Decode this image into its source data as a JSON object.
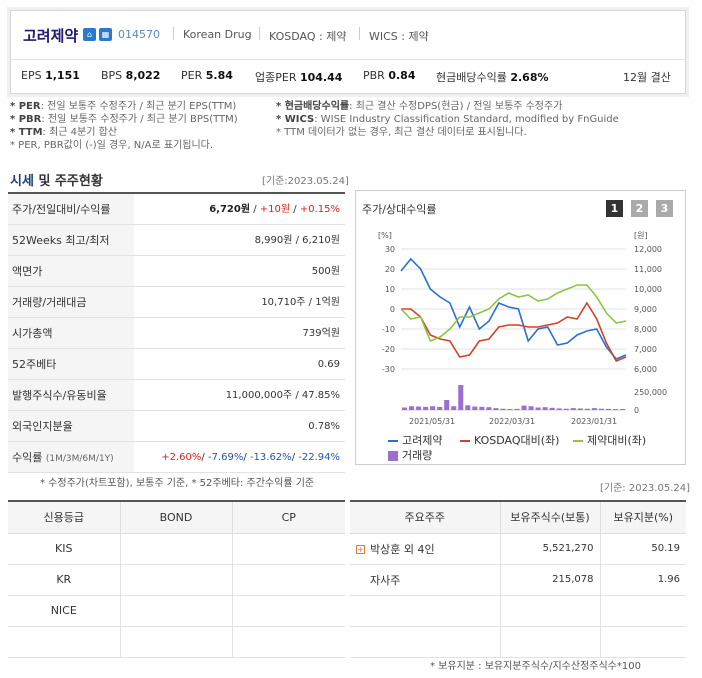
{
  "header": {
    "name": "고려제약",
    "code": "014570",
    "eng_name": "Korean Drug",
    "market": "KOSDAQ : 제약",
    "wics": "WICS : 제약",
    "metrics": [
      {
        "label": "EPS",
        "value": "1,151"
      },
      {
        "label": "BPS",
        "value": "8,022"
      },
      {
        "label": "PER",
        "value": "5.84"
      },
      {
        "label": "업종PER",
        "value": "104.44"
      },
      {
        "label": "PBR",
        "value": "0.84"
      },
      {
        "label": "현금배당수익률",
        "value": "2.68%"
      }
    ],
    "settlement": "12월 결산"
  },
  "notes": {
    "per": [
      "* PER",
      ": 전일 보통주 수정주가 / 최근 분기 EPS(TTM)"
    ],
    "pbr": [
      "* PBR",
      ": 전일 보통주 수정주가 / 최근 분기 BPS(TTM)"
    ],
    "ttm": [
      "* TTM",
      ": 최근 4분기 합산"
    ],
    "neg": "* PER, PBR값이 (-)일 경우, N/A로 표기됩니다.",
    "div": [
      "* 현금배당수익률",
      ": 최근 결산 수정DPS(현금) / 전일 보통주 수정주가"
    ],
    "wics": [
      "* WICS",
      ": WISE Industry Classification Standard, modified by FnGuide"
    ],
    "ttm2": "* TTM 데이터가 없는 경우, 최근 결산 데이터로 표시됩니다."
  },
  "price_section": {
    "title_a": "시세",
    "title_b": " 및 주주현황",
    "date": "[기준:2023.05.24]",
    "rows": [
      {
        "k": "주가/전일대비/수익률",
        "v1": "6,720원",
        "v2": " / ",
        "v3": "+10원",
        "v4": " / ",
        "v5": "+0.15%"
      },
      {
        "k": "52Weeks 최고/최저",
        "v": "8,990원 / 6,210원"
      },
      {
        "k": "액면가",
        "v": "500원"
      },
      {
        "k": "거래량/거래대금",
        "v": "10,710주 / 1억원"
      },
      {
        "k": "시가총액",
        "v": "739억원"
      },
      {
        "k": "52주베타",
        "v": "0.69"
      },
      {
        "k": "발행주식수/유동비율",
        "v": "11,000,000주 / 47.85%"
      },
      {
        "k": "외국인지분율",
        "v": "0.78%"
      }
    ],
    "returns_label": "수익률",
    "returns_sub": "(1M/3M/6M/1Y)",
    "returns": [
      "+2.60%",
      "-7.69%",
      "-13.62%",
      "-22.94%"
    ],
    "footnote": "* 수정주가(차트포함), 보통주 기준, * 52주베타: 주간수익률 기준"
  },
  "chart_panel": {
    "title": "주가/상대수익률",
    "buttons": [
      "1",
      "2",
      "3"
    ],
    "left_unit": "[%]",
    "right_unit": "[원]"
  },
  "chart_data": {
    "type": "line",
    "x_ticks": [
      "2021/05/31",
      "2022/03/31",
      "2023/01/31"
    ],
    "y_left_ticks": [
      "30",
      "20",
      "10",
      "0",
      "-10",
      "-20",
      "-30"
    ],
    "y_right_ticks": [
      "12,000",
      "11,000",
      "10,000",
      "9,000",
      "8,000",
      "7,000",
      "6,000"
    ],
    "volume_ticks": [
      "250,000",
      "0"
    ],
    "ylim_left": [
      -30,
      30
    ],
    "ylim_right": [
      6000,
      12000
    ],
    "series": [
      {
        "name": "고려제약",
        "color": "#2a6fd3",
        "values": [
          19,
          25,
          20,
          10,
          6,
          3,
          -9,
          1,
          -10,
          -6,
          3,
          1,
          0,
          -16,
          -10,
          -9,
          -18,
          -17,
          -13,
          -11,
          -10,
          -19,
          -25,
          -23
        ]
      },
      {
        "name": "KOSDAQ대비(좌)",
        "color": "#d2422b",
        "values": [
          0,
          0,
          -4,
          -13,
          -15,
          -16,
          -24,
          -23,
          -16,
          -15,
          -9,
          -8,
          -8,
          -9,
          -9,
          -8,
          -7,
          -4,
          -5,
          3,
          -5,
          -17,
          -26,
          -24
        ]
      },
      {
        "name": "제약대비(좌)",
        "color": "#8cc63f",
        "values": [
          0,
          -5,
          -4,
          -16,
          -14,
          -10,
          -4,
          -4,
          -2,
          0,
          5,
          8,
          6,
          7,
          4,
          5,
          8,
          10,
          12,
          12,
          6,
          -2,
          -7,
          -6
        ]
      },
      {
        "name": "거래량",
        "color": "#9b6fd0",
        "volumes": [
          40,
          60,
          55,
          50,
          60,
          50,
          160,
          60,
          400,
          75,
          55,
          50,
          45,
          30,
          20,
          15,
          18,
          70,
          60,
          40,
          45,
          35,
          25,
          20,
          30,
          25,
          20,
          30,
          20,
          18,
          15,
          15
        ]
      }
    ]
  },
  "date2": "[기준: 2023.05.24]",
  "credit": {
    "headers": [
      "신용등급",
      "BOND",
      "CP"
    ],
    "rows": [
      "KIS",
      "KR",
      "NICE",
      ""
    ]
  },
  "holders": {
    "headers": [
      "주요주주",
      "보유주식수(보통)",
      "보유지분(%)"
    ],
    "rows": [
      {
        "name": "박상훈 외 4인",
        "shares": "5,521,270",
        "pct": "50.19"
      },
      {
        "name": "자사주",
        "shares": "215,078",
        "pct": "1.96"
      },
      {
        "name": "",
        "shares": "",
        "pct": ""
      },
      {
        "name": "",
        "shares": "",
        "pct": ""
      }
    ],
    "footnote": "* 보유지분 : 보유지분주식수/지수산정주식수*100"
  }
}
